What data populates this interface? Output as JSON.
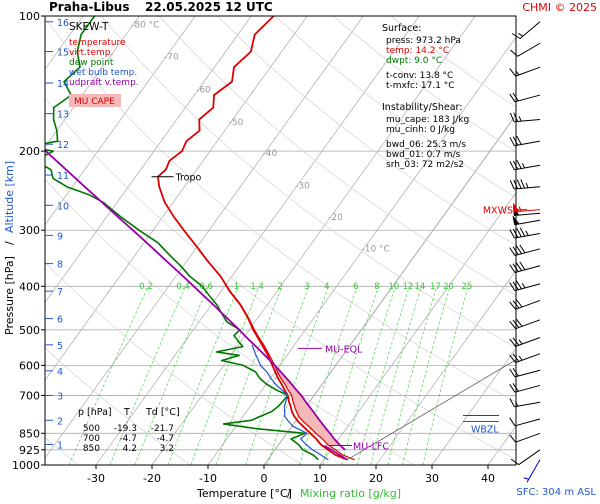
{
  "header": {
    "station": "Praha-Libus",
    "datetime": "22.05.2025 12 UTC",
    "copyright": "CHMI © 2025"
  },
  "footer": {
    "sfc": "SFC: 304 m ASL"
  },
  "colors": {
    "temperature": "#dd0000",
    "virt_temp": "#dd0000",
    "dew_point": "#007700",
    "wet_bulb": "#2255cc",
    "udpraft": "#9900aa",
    "grid": "#aaaaaa",
    "mixing": "#33cc33",
    "cape_fill": "#f4b8b8",
    "wind": "#000000",
    "wind_upper": "#dd0000",
    "wind_sfc": "#0000cc"
  },
  "chart_data": {
    "type": "skew-t",
    "xlabel": "Temperature [°C]",
    "xlabel_sep": "/",
    "xlabel2": "Mixing ratio [g/kg]",
    "ylabel": "Pressure [hPa]",
    "ylabel_sep": "/",
    "ylabel2": "Altitude [km]",
    "xlim": [
      -35,
      45
    ],
    "ylim": [
      1000,
      100
    ],
    "x_ticks": [
      -30,
      -20,
      -10,
      0,
      10,
      20,
      30,
      40
    ],
    "x_tick_labels": [
      "-30",
      "-20",
      "-10",
      "0",
      "10",
      "20",
      "30",
      "40"
    ],
    "pressure_ticks": [
      100,
      200,
      300,
      400,
      500,
      600,
      700,
      850,
      925,
      1000
    ],
    "pressure_tick_labels": [
      "100",
      "200",
      "300",
      "400",
      "500",
      "600",
      "700",
      "850",
      "925",
      "1000"
    ],
    "altitude_km_ticks": [
      {
        "label": "1",
        "p": 900
      },
      {
        "label": "2",
        "p": 795
      },
      {
        "label": "3",
        "p": 700
      },
      {
        "label": "4",
        "p": 617
      },
      {
        "label": "5",
        "p": 540
      },
      {
        "label": "6",
        "p": 472
      },
      {
        "label": "7",
        "p": 410
      },
      {
        "label": "8",
        "p": 356
      },
      {
        "label": "9",
        "p": 308
      },
      {
        "label": "10",
        "p": 264
      },
      {
        "label": "11",
        "p": 226
      },
      {
        "label": "12",
        "p": 193
      },
      {
        "label": "13",
        "p": 165
      },
      {
        "label": "14",
        "p": 141
      },
      {
        "label": "15",
        "p": 120
      },
      {
        "label": "16",
        "p": 103
      }
    ],
    "isotherm_labels": [
      {
        "t": -80,
        "label": "-80 °C",
        "p": 106
      },
      {
        "t": -70,
        "label": "-70",
        "p": 125
      },
      {
        "t": -60,
        "label": "-60",
        "p": 148
      },
      {
        "t": -50,
        "label": "-50",
        "p": 175
      },
      {
        "t": -40,
        "label": "-40",
        "p": 205
      },
      {
        "t": -30,
        "label": "-30",
        "p": 242
      },
      {
        "t": -20,
        "label": "-20",
        "p": 285
      },
      {
        "t": -10,
        "label": "-10 °C",
        "p": 335
      }
    ],
    "mixing_ratio_labels": [
      "0.2",
      "0.4",
      "0.6",
      "1",
      "1.4",
      "2",
      "3",
      "4",
      "6",
      "8",
      "10",
      "12",
      "14",
      "17",
      "20",
      "25"
    ],
    "mixing_ratio_values": [
      0.2,
      0.4,
      0.6,
      1,
      1.4,
      2,
      3,
      4,
      6,
      8,
      10,
      12,
      14,
      17,
      20,
      25
    ],
    "mixing_label_pressure": 410,
    "legend": {
      "title": "SKEW-T",
      "items": [
        {
          "label": "temperature",
          "color": "#dd0000"
        },
        {
          "label": "virt.temp.",
          "color": "#dd0000"
        },
        {
          "label": "dew point",
          "color": "#007700"
        },
        {
          "label": "wet bulb temp.",
          "color": "#2255cc"
        },
        {
          "label": "udpraft v.temp.",
          "color": "#9900aa"
        }
      ],
      "cape_label": "MU CAPE"
    },
    "surface_box": {
      "title": "Surface:",
      "lines": [
        {
          "text": "press: 973.2 hPa",
          "color": "#000000"
        },
        {
          "text": "temp: 14.2 °C",
          "color": "#dd0000"
        },
        {
          "text": "dwpt: 9.0 °C",
          "color": "#007700"
        }
      ],
      "lines2": [
        {
          "text": "t-conv: 13.8 °C"
        },
        {
          "text": "t-mxfc: 17.1 °C"
        }
      ]
    },
    "instability_box": {
      "title": "Instability/Shear:",
      "lines": [
        {
          "text": "mu_cape: 183 J/kg"
        },
        {
          "text": "mu_cinh: 0 J/kg"
        }
      ],
      "lines2": [
        {
          "text": "bwd_06: 25.3 m/s"
        },
        {
          "text": "bwd_01: 0.7 m/s"
        },
        {
          "text": "srh_03: 72 m2/s2"
        }
      ]
    },
    "table": {
      "headers": [
        "p [hPa]",
        "T",
        "Td [°C]"
      ],
      "rows": [
        [
          "500",
          "-19.3",
          "-21.7"
        ],
        [
          "700",
          "-4.7",
          "-4.7"
        ],
        [
          "850",
          "4.2",
          "3.2"
        ]
      ]
    },
    "annotations": [
      {
        "label": "Tropo",
        "p": 228,
        "t": -55,
        "color": "#000000"
      },
      {
        "label": "MU-EQL",
        "p": 550,
        "t": -15,
        "color": "#9900aa"
      },
      {
        "label": "MU-LFC",
        "p": 905,
        "t": 6,
        "color": "#9900aa"
      },
      {
        "label": "MXWS",
        "p": 270,
        "color": "#dd0000"
      },
      {
        "label": "WBZL",
        "p": 800,
        "color": "#2255cc"
      }
    ],
    "series": [
      {
        "name": "temperature",
        "color": "#dd0000",
        "p": [
          973,
          950,
          925,
          900,
          875,
          850,
          820,
          800,
          780,
          760,
          740,
          720,
          700,
          680,
          660,
          640,
          620,
          600,
          570,
          540,
          520,
          500,
          470,
          440,
          410,
          380,
          350,
          330,
          300,
          280,
          260,
          240,
          228,
          220,
          210,
          200,
          190,
          180,
          170,
          160,
          150,
          140,
          130,
          120,
          110,
          100
        ],
        "t": [
          14.2,
          11.5,
          9.5,
          7.5,
          6.0,
          4.2,
          2.0,
          0.5,
          -0.8,
          -1.9,
          -2.8,
          -3.8,
          -4.7,
          -6.0,
          -7.3,
          -8.7,
          -10.0,
          -11.3,
          -13.4,
          -15.8,
          -17.5,
          -19.3,
          -21.8,
          -24.8,
          -28.5,
          -32.0,
          -36.5,
          -39.5,
          -44.5,
          -48.0,
          -51.5,
          -54.5,
          -56.0,
          -55.5,
          -56.0,
          -55.0,
          -55.5,
          -54.5,
          -56.0,
          -55.0,
          -56.5,
          -55.0,
          -56.5,
          -55.5,
          -57.0,
          -56.0
        ]
      },
      {
        "name": "virt.temp.",
        "color": "#dd0000",
        "p": [
          973,
          950,
          925,
          900,
          875,
          850,
          820,
          800,
          780,
          760,
          740,
          720,
          700,
          680,
          660,
          640,
          620,
          600,
          570,
          540,
          520,
          500,
          470,
          440,
          410,
          380,
          350
        ],
        "t": [
          15.5,
          12.8,
          10.8,
          8.7,
          7.1,
          5.2,
          3.0,
          1.4,
          0.0,
          -1.1,
          -2.1,
          -3.1,
          -4.0,
          -5.4,
          -6.7,
          -8.2,
          -9.6,
          -10.9,
          -13.1,
          -15.5,
          -17.3,
          -19.1,
          -21.7,
          -24.7,
          -28.4,
          -32.0,
          -36.5
        ]
      },
      {
        "name": "dew point",
        "color": "#007700",
        "p": [
          973,
          950,
          925,
          900,
          875,
          860,
          850,
          830,
          810,
          795,
          780,
          760,
          740,
          720,
          700,
          680,
          660,
          640,
          620,
          600,
          585,
          570,
          560,
          545,
          530,
          515,
          500,
          480,
          460,
          440,
          420,
          400,
          380,
          360,
          340,
          320,
          300,
          280,
          260,
          250,
          240,
          230,
          220,
          210,
          200,
          195,
          190,
          180,
          170,
          160,
          150,
          140,
          130,
          120,
          110,
          100
        ],
        "t": [
          9.0,
          7.5,
          5.0,
          3.5,
          1.5,
          2.5,
          3.2,
          -6.0,
          -12.5,
          -8.0,
          -7.0,
          -5.5,
          -5.0,
          -4.8,
          -4.7,
          -7.5,
          -10.0,
          -12.0,
          -13.5,
          -16.5,
          -21.0,
          -18.5,
          -23.0,
          -19.0,
          -20.5,
          -22.0,
          -21.7,
          -25.0,
          -27.0,
          -29.0,
          -31.5,
          -34.0,
          -37.5,
          -40.5,
          -44.0,
          -47.5,
          -52.5,
          -57.5,
          -62.5,
          -66.0,
          -71.0,
          -74.5,
          -76.0,
          -80.0,
          -78.0,
          -83.0,
          -78.5,
          -80.0,
          -82.0,
          -83.5,
          -82.0,
          -85.0,
          -84.0,
          -86.5,
          -88.0,
          -88.0
        ]
      },
      {
        "name": "wet bulb temp.",
        "color": "#2255cc",
        "p": [
          973,
          950,
          925,
          900,
          875,
          850,
          820,
          800,
          780,
          760,
          740,
          720,
          700,
          680,
          660,
          640,
          620,
          600,
          570,
          540
        ],
        "t": [
          10.8,
          8.9,
          6.7,
          4.9,
          3.2,
          3.6,
          0.2,
          -1.2,
          -2.5,
          -3.2,
          -3.9,
          -4.3,
          -4.7,
          -6.5,
          -8.4,
          -10.0,
          -11.5,
          -13.4,
          -15.5,
          -17.6
        ]
      },
      {
        "name": "udpraft v.temp.",
        "color": "#9900aa",
        "p": [
          925,
          900,
          875,
          850,
          820,
          800,
          780,
          760,
          740,
          720,
          700,
          680,
          660,
          640,
          620,
          600,
          580,
          560,
          540,
          520,
          500,
          480,
          460,
          440,
          420,
          400,
          380,
          360,
          340,
          320,
          300,
          280,
          260,
          240,
          220,
          200,
          180,
          160,
          140,
          120
        ],
        "t": [
          12.5,
          10.8,
          9.2,
          7.7,
          5.8,
          4.5,
          3.2,
          1.9,
          0.5,
          -0.9,
          -2.3,
          -3.9,
          -5.5,
          -7.2,
          -9.0,
          -10.9,
          -12.9,
          -15.0,
          -17.2,
          -19.5,
          -21.8,
          -24.3,
          -26.9,
          -29.6,
          -32.5,
          -35.5,
          -38.7,
          -42.1,
          -45.7,
          -49.5,
          -53.6,
          -58.0,
          -62.7,
          -67.8,
          -73.3,
          -79.3,
          -85.8,
          -93.0,
          -101.0,
          -110.0
        ]
      }
    ],
    "wind_barbs": [
      {
        "p": 973,
        "dir": 210,
        "spd": 5,
        "color": "#0000cc"
      },
      {
        "p": 925,
        "dir": 235,
        "spd": 10,
        "color": "#000000"
      },
      {
        "p": 850,
        "dir": 250,
        "spd": 12,
        "color": "#000000"
      },
      {
        "p": 790,
        "dir": 255,
        "spd": 10,
        "color": "#000000"
      },
      {
        "p": 725,
        "dir": 260,
        "spd": 15,
        "color": "#000000"
      },
      {
        "p": 665,
        "dir": 255,
        "spd": 20,
        "color": "#000000"
      },
      {
        "p": 615,
        "dir": 255,
        "spd": 20,
        "color": "#000000"
      },
      {
        "p": 565,
        "dir": 250,
        "spd": 25,
        "color": "#000000"
      },
      {
        "p": 520,
        "dir": 250,
        "spd": 25,
        "color": "#000000"
      },
      {
        "p": 475,
        "dir": 250,
        "spd": 30,
        "color": "#000000"
      },
      {
        "p": 430,
        "dir": 250,
        "spd": 30,
        "color": "#000000"
      },
      {
        "p": 395,
        "dir": 255,
        "spd": 35,
        "color": "#000000"
      },
      {
        "p": 360,
        "dir": 255,
        "spd": 40,
        "color": "#000000"
      },
      {
        "p": 330,
        "dir": 255,
        "spd": 40,
        "color": "#000000"
      },
      {
        "p": 305,
        "dir": 260,
        "spd": 45,
        "color": "#000000"
      },
      {
        "p": 285,
        "dir": 260,
        "spd": 50,
        "color": "#000000"
      },
      {
        "p": 275,
        "dir": 265,
        "spd": 50,
        "color": "#000000"
      },
      {
        "p": 270,
        "dir": 265,
        "spd": 55,
        "color": "#dd0000"
      },
      {
        "p": 240,
        "dir": 265,
        "spd": 45,
        "color": "#000000"
      },
      {
        "p": 215,
        "dir": 260,
        "spd": 35,
        "color": "#000000"
      },
      {
        "p": 190,
        "dir": 260,
        "spd": 30,
        "color": "#000000"
      },
      {
        "p": 170,
        "dir": 265,
        "spd": 25,
        "color": "#000000"
      },
      {
        "p": 150,
        "dir": 255,
        "spd": 20,
        "color": "#000000"
      },
      {
        "p": 130,
        "dir": 250,
        "spd": 15,
        "color": "#000000"
      },
      {
        "p": 115,
        "dir": 240,
        "spd": 10,
        "color": "#000000"
      },
      {
        "p": 103,
        "dir": 230,
        "spd": 15,
        "color": "#000000"
      }
    ]
  }
}
